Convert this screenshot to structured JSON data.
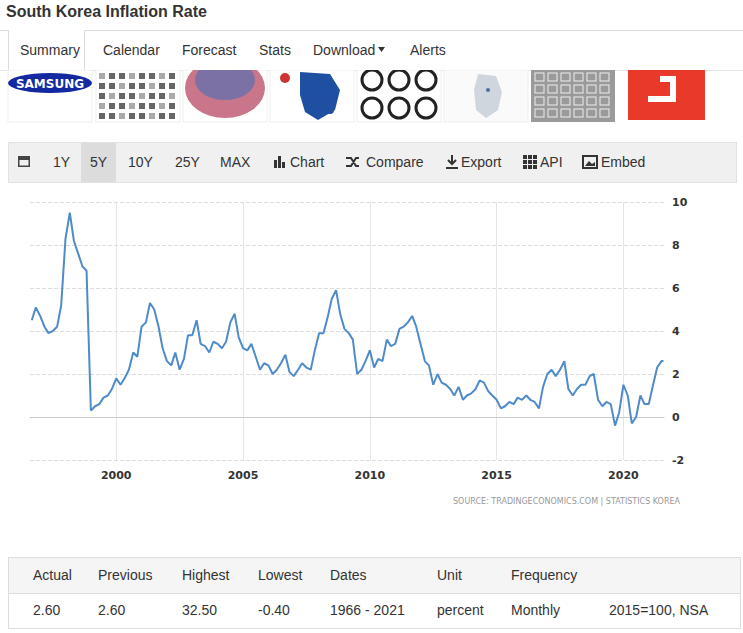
{
  "header": {
    "title": "South Korea Inflation Rate"
  },
  "tabs": {
    "items": [
      "Summary",
      "Calendar",
      "Forecast",
      "Stats",
      "Download",
      "Alerts"
    ],
    "selected": "Summary"
  },
  "thumbnails": {
    "logo_text": "SAMSUNG"
  },
  "toolbar": {
    "ranges": [
      "1Y",
      "5Y",
      "10Y",
      "25Y",
      "MAX"
    ],
    "selected": "5Y",
    "actions": [
      "Chart",
      "Compare",
      "Export",
      "API",
      "Embed"
    ]
  },
  "chart_data": {
    "type": "line",
    "source": "SOURCE: TRADINGECONOMICS.COM | STATISTICS KOREA",
    "color": "#4f8bc9",
    "grid": true,
    "x": [
      1996.67,
      1996.83,
      1997.0,
      1997.17,
      1997.33,
      1997.5,
      1997.67,
      1997.83,
      1998.0,
      1998.17,
      1998.33,
      1998.5,
      1998.67,
      1998.83,
      1999.0,
      1999.17,
      1999.33,
      1999.5,
      1999.67,
      1999.83,
      2000.0,
      2000.17,
      2000.33,
      2000.5,
      2000.67,
      2000.83,
      2001.0,
      2001.17,
      2001.33,
      2001.5,
      2001.67,
      2001.83,
      2002.0,
      2002.17,
      2002.33,
      2002.5,
      2002.67,
      2002.83,
      2003.0,
      2003.17,
      2003.33,
      2003.5,
      2003.67,
      2003.83,
      2004.0,
      2004.17,
      2004.33,
      2004.5,
      2004.67,
      2004.83,
      2005.0,
      2005.17,
      2005.33,
      2005.5,
      2005.67,
      2005.83,
      2006.0,
      2006.17,
      2006.33,
      2006.5,
      2006.67,
      2006.83,
      2007.0,
      2007.17,
      2007.33,
      2007.5,
      2007.67,
      2007.83,
      2008.0,
      2008.17,
      2008.33,
      2008.5,
      2008.67,
      2008.83,
      2009.0,
      2009.17,
      2009.33,
      2009.5,
      2009.67,
      2009.83,
      2010.0,
      2010.17,
      2010.33,
      2010.5,
      2010.67,
      2010.83,
      2011.0,
      2011.17,
      2011.33,
      2011.5,
      2011.67,
      2011.83,
      2012.0,
      2012.17,
      2012.33,
      2012.5,
      2012.67,
      2012.83,
      2013.0,
      2013.17,
      2013.33,
      2013.5,
      2013.67,
      2013.83,
      2014.0,
      2014.17,
      2014.33,
      2014.5,
      2014.67,
      2014.83,
      2015.0,
      2015.17,
      2015.33,
      2015.5,
      2015.67,
      2015.83,
      2016.0,
      2016.17,
      2016.33,
      2016.5,
      2016.67,
      2016.83,
      2017.0,
      2017.17,
      2017.33,
      2017.5,
      2017.67,
      2017.83,
      2018.0,
      2018.17,
      2018.33,
      2018.5,
      2018.67,
      2018.83,
      2019.0,
      2019.17,
      2019.33,
      2019.5,
      2019.67,
      2019.83,
      2020.0,
      2020.17,
      2020.33,
      2020.5,
      2020.67,
      2020.83,
      2021.0,
      2021.17,
      2021.33,
      2021.5,
      2021.58
    ],
    "values": [
      4.5,
      5.1,
      4.7,
      4.2,
      3.9,
      4.0,
      4.2,
      5.2,
      8.3,
      9.5,
      8.2,
      7.6,
      7.0,
      6.8,
      0.3,
      0.5,
      0.6,
      0.9,
      1.0,
      1.3,
      1.8,
      1.5,
      1.8,
      2.2,
      3.0,
      2.8,
      4.2,
      4.4,
      5.3,
      5.0,
      4.2,
      3.2,
      2.6,
      2.4,
      3.0,
      2.2,
      2.7,
      3.8,
      3.8,
      4.5,
      3.4,
      3.3,
      3.0,
      3.5,
      3.4,
      3.2,
      3.5,
      4.4,
      4.8,
      3.7,
      3.2,
      3.1,
      3.4,
      2.8,
      2.2,
      2.5,
      2.4,
      2.0,
      2.2,
      2.5,
      2.9,
      2.1,
      1.9,
      2.2,
      2.5,
      2.3,
      2.2,
      3.1,
      3.9,
      3.9,
      4.6,
      5.5,
      5.9,
      4.8,
      4.1,
      3.9,
      3.6,
      2.0,
      2.2,
      2.6,
      3.1,
      2.3,
      2.7,
      2.6,
      3.6,
      3.3,
      3.4,
      4.1,
      4.2,
      4.4,
      4.7,
      4.2,
      3.4,
      2.6,
      2.4,
      1.5,
      2.0,
      1.6,
      1.5,
      1.3,
      1.0,
      1.4,
      0.8,
      1.0,
      1.1,
      1.3,
      1.7,
      1.6,
      1.2,
      1.0,
      0.8,
      0.4,
      0.5,
      0.7,
      0.6,
      0.9,
      0.8,
      1.0,
      0.8,
      0.7,
      0.4,
      1.4,
      2.0,
      2.2,
      1.9,
      2.2,
      2.6,
      1.3,
      1.0,
      1.3,
      1.5,
      1.5,
      1.9,
      2.0,
      0.8,
      0.5,
      0.7,
      0.6,
      -0.4,
      0.2,
      1.5,
      1.0,
      -0.3,
      0.0,
      1.0,
      0.6,
      0.6,
      1.5,
      2.3,
      2.6,
      2.6
    ],
    "xlim": [
      1996.6,
      2021.6
    ],
    "xticks": [
      2000,
      2005,
      2010,
      2015,
      2020
    ],
    "ylim": [
      -2,
      10
    ],
    "yticks": [
      -2,
      0,
      2,
      4,
      6,
      8,
      10
    ]
  },
  "table": {
    "header": [
      "Actual",
      "Previous",
      "Highest",
      "Lowest",
      "Dates",
      "Unit",
      "Frequency"
    ],
    "rows": [
      [
        "2.60",
        "2.60",
        "32.50",
        "-0.40",
        "1966 - 2021",
        "percent",
        "Monthly",
        "2015=100, NSA"
      ]
    ]
  }
}
